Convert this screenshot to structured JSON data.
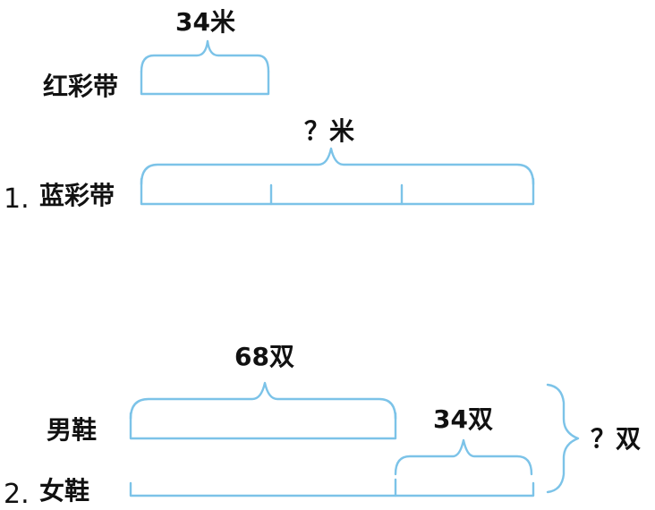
{
  "colors": {
    "line": "#7cc3e8",
    "text": "#111111"
  },
  "problem1": {
    "number": "1.",
    "red_label": "红彩带",
    "red_brace_label": "34米",
    "blue_label": "蓝彩带",
    "blue_brace_label": "？米",
    "blue_segments": 3
  },
  "problem2": {
    "number": "2.",
    "men_label": "男鞋",
    "men_brace_label": "68双",
    "women_label": "女鞋",
    "women_extra_label": "34双",
    "total_label": "？双"
  }
}
